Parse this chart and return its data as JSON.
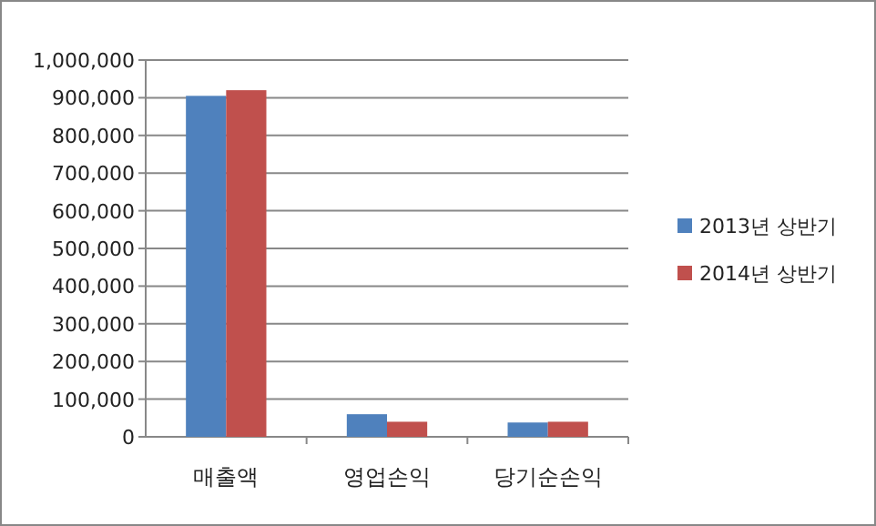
{
  "chart_data": {
    "type": "bar",
    "categories": [
      "매출액",
      "영업손익",
      "당기순손익"
    ],
    "series": [
      {
        "name": "2013년 상반기",
        "color": "#4f81bd",
        "values": [
          905000,
          60000,
          38000
        ]
      },
      {
        "name": "2014년 상반기",
        "color": "#c0504d",
        "values": [
          920000,
          40000,
          40000
        ]
      }
    ],
    "ylim": [
      0,
      1000000
    ],
    "yticks": [
      {
        "value": 0,
        "label": "0"
      },
      {
        "value": 100000,
        "label": "100,000"
      },
      {
        "value": 200000,
        "label": "200,000"
      },
      {
        "value": 300000,
        "label": "300,000"
      },
      {
        "value": 400000,
        "label": "400,000"
      },
      {
        "value": 500000,
        "label": "500,000"
      },
      {
        "value": 600000,
        "label": "600,000"
      },
      {
        "value": 700000,
        "label": "700,000"
      },
      {
        "value": 800000,
        "label": "800,000"
      },
      {
        "value": 900000,
        "label": "900,000"
      },
      {
        "value": 1000000,
        "label": "1,000,000"
      }
    ],
    "grid": "y",
    "legend": "right"
  }
}
